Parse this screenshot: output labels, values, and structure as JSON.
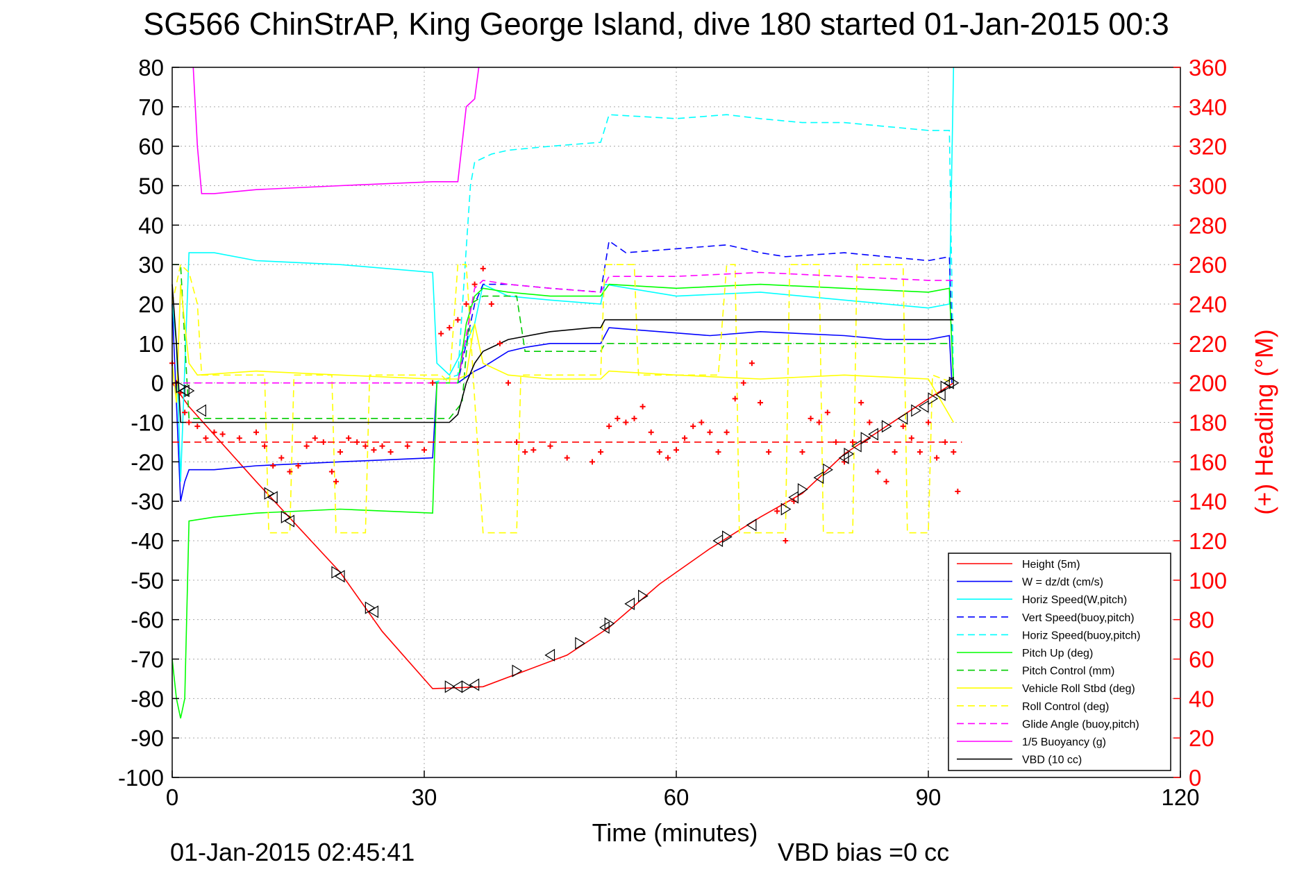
{
  "chart_data": {
    "type": "line",
    "title": "SG566 ChinStrAP, King George Island, dive 180 started 01-Jan-2015 00:3",
    "xlabel": "Time (minutes)",
    "ylabel_right": "(+) Heading (°M)",
    "xlim": [
      0,
      120
    ],
    "ylim": [
      -100,
      80
    ],
    "ylim_right": [
      0,
      360
    ],
    "xticks": [
      0,
      30,
      60,
      90,
      120
    ],
    "yticks": [
      80,
      70,
      60,
      50,
      40,
      30,
      20,
      10,
      0,
      -10,
      -20,
      -30,
      -40,
      -50,
      -60,
      -70,
      -80,
      -90,
      -100
    ],
    "yticks_right": [
      360,
      340,
      320,
      300,
      280,
      260,
      240,
      220,
      200,
      180,
      160,
      140,
      120,
      100,
      80,
      60,
      40,
      20,
      0
    ],
    "grid": true,
    "legend_position": "bottom-right",
    "footer_left": "01-Jan-2015 02:45:41",
    "footer_right": "VBD bias =0 cc",
    "colors": {
      "axis_right": "#ff0000",
      "grid": "#aaaaaa"
    },
    "series": [
      {
        "name": "Height (5m)",
        "color": "#ff0000",
        "dash": "solid",
        "x": [
          0,
          2,
          10,
          20,
          25,
          31,
          37,
          42,
          47,
          52,
          58,
          64,
          70,
          75,
          80,
          85,
          90,
          93
        ],
        "y": [
          0,
          -6,
          -25,
          -48,
          -63,
          -77.5,
          -77,
          -73,
          -69,
          -62,
          -51,
          -42,
          -34,
          -28,
          -18,
          -11,
          -4,
          0
        ]
      },
      {
        "name": "W = dz/dt (cm/s)",
        "color": "#0000ff",
        "dash": "solid",
        "x": [
          0,
          0.5,
          1,
          1.5,
          2,
          5,
          10,
          20,
          31,
          31.5,
          34,
          36,
          37,
          40,
          42,
          45,
          51,
          51.5,
          52,
          58,
          64,
          70,
          80,
          85,
          90,
          92.5,
          92.8
        ],
        "y": [
          20,
          -5,
          -30,
          -25,
          -22,
          -22,
          -21,
          -20,
          -19,
          0,
          0,
          3,
          4,
          8,
          9,
          10,
          10,
          12,
          14,
          13,
          12,
          13,
          12,
          11,
          11,
          12,
          0
        ]
      },
      {
        "name": "Horiz Speed(W,pitch)",
        "color": "#00ffff",
        "dash": "solid",
        "x": [
          0,
          0.5,
          1,
          2,
          5,
          10,
          20,
          31,
          31.5,
          33,
          35,
          36,
          37,
          40,
          45,
          51,
          51.5,
          60,
          70,
          80,
          90,
          92.5,
          93
        ],
        "y": [
          20,
          10,
          -25,
          33,
          33,
          31,
          30,
          28,
          5,
          2,
          10,
          15,
          25,
          22,
          21,
          20,
          25,
          22,
          23,
          21,
          19,
          20,
          80
        ]
      },
      {
        "name": "Vert Speed(buoy,pitch)",
        "color": "#0000ff",
        "dash": "dashed",
        "x": [
          31,
          34,
          36,
          37,
          40,
          45,
          51,
          52,
          54,
          60,
          66,
          70,
          73,
          80,
          85,
          90,
          92.5,
          93
        ],
        "y": [
          0,
          0,
          20,
          25,
          25,
          24,
          23,
          36,
          33,
          34,
          35,
          33,
          32,
          33,
          32,
          31,
          32,
          0
        ]
      },
      {
        "name": "Horiz Speed(buoy,pitch)",
        "color": "#00ffff",
        "dash": "dashed",
        "x": [
          31,
          34,
          35.5,
          36,
          38,
          40,
          45,
          51,
          52,
          60,
          66,
          70,
          75,
          80,
          85,
          90,
          92.5,
          93
        ],
        "y": [
          0,
          2,
          50,
          56,
          58,
          59,
          60,
          61,
          68,
          67,
          68,
          67,
          66,
          66,
          65,
          64,
          64,
          0
        ]
      },
      {
        "name": "Pitch Up (deg)",
        "color": "#00ff00",
        "dash": "solid",
        "x": [
          0,
          0.5,
          1,
          1.5,
          2,
          5,
          10,
          20,
          31,
          31.5,
          34,
          35,
          36,
          37,
          40,
          45,
          51,
          52,
          60,
          70,
          80,
          90,
          92.5,
          93
        ],
        "y": [
          -70,
          -80,
          -85,
          -80,
          -35,
          -34,
          -33,
          -32,
          -33,
          0,
          0,
          15,
          22,
          24,
          23,
          22,
          22,
          25,
          24,
          25,
          24,
          23,
          24,
          0
        ]
      },
      {
        "name": "Pitch Control (mm)",
        "color": "#00cc00",
        "dash": "dashed",
        "x": [
          0,
          1,
          2,
          31,
          33,
          34.5,
          35.5,
          37,
          41,
          42,
          51,
          51.5,
          93
        ],
        "y": [
          30,
          30,
          -9,
          -9,
          -9,
          -5,
          20,
          22,
          22,
          8,
          8,
          10,
          10
        ]
      },
      {
        "name": "Vehicle Roll Stbd (deg)",
        "color": "#ffff00",
        "dash": "solid",
        "x": [
          0,
          0.5,
          1,
          1.5,
          2,
          3,
          10,
          20,
          31,
          32,
          34,
          35,
          36,
          37,
          40,
          45,
          51,
          52,
          60,
          70,
          80,
          90,
          93
        ],
        "y": [
          5,
          -5,
          25,
          15,
          5,
          2,
          3,
          2,
          1,
          1,
          1,
          2,
          15,
          5,
          2,
          1,
          1,
          3,
          2,
          1,
          2,
          1,
          -10
        ]
      },
      {
        "name": "Roll Control (deg)",
        "color": "#ffff00",
        "dash": "dashed",
        "x": [
          0,
          1,
          2,
          3,
          3.5,
          11,
          11.5,
          14,
          14.5,
          19,
          19.5,
          23,
          23.5,
          32,
          33,
          34,
          35,
          37,
          37.5,
          41,
          41.5,
          51,
          51.5,
          55,
          55.5,
          65,
          66,
          67,
          67.5,
          73,
          73.5,
          77,
          77.5,
          81,
          81.5,
          87,
          87.5,
          90,
          90.5,
          93
        ],
        "y": [
          20,
          30,
          28,
          20,
          2,
          2,
          -38,
          -38,
          2,
          2,
          -38,
          -38,
          2,
          2,
          0,
          30,
          30,
          -38,
          -38,
          -38,
          2,
          2,
          30,
          30,
          2,
          2,
          30,
          30,
          -38,
          -38,
          30,
          30,
          -38,
          -38,
          30,
          30,
          -38,
          -38,
          2,
          0
        ]
      },
      {
        "name": "Glide Angle (buoy,pitch)",
        "color": "#ff00ff",
        "dash": "dashed",
        "x": [
          0,
          31,
          34,
          36,
          37,
          40,
          45,
          51,
          52,
          60,
          70,
          80,
          90,
          93
        ],
        "y": [
          0,
          0,
          0,
          24,
          26,
          25,
          24,
          23,
          27,
          27,
          28,
          27,
          26,
          26
        ]
      },
      {
        "name": "1/5 Buoyancy (g)",
        "color": "#ff00ff",
        "dash": "solid",
        "x": [
          2.5,
          3,
          3.5,
          5,
          10,
          20,
          31,
          34,
          35,
          36,
          36.5
        ],
        "y": [
          80,
          60,
          48,
          48,
          49,
          50,
          51,
          51,
          70,
          72,
          80
        ]
      },
      {
        "name": "VBD (10 cc)",
        "color": "#000000",
        "dash": "solid",
        "x": [
          0,
          0.5,
          1,
          3,
          10,
          20,
          31,
          33,
          34,
          35,
          36,
          37,
          38,
          40,
          45,
          50,
          51,
          51.5,
          60,
          70,
          80,
          90,
          93
        ],
        "y": [
          25,
          10,
          -10,
          -10,
          -10,
          -10,
          -10,
          -10,
          -8,
          0,
          5,
          8,
          9,
          11,
          13,
          14,
          14,
          16,
          16,
          16,
          16,
          16,
          16
        ]
      },
      {
        "name": "",
        "color": "#ff0000",
        "dash": "dashed",
        "axis": "right",
        "x": [
          0,
          94
        ],
        "y": [
          170,
          170
        ]
      }
    ],
    "heading_points": {
      "color": "#ff0000",
      "marker": "+",
      "axis": "right",
      "x": [
        0,
        0.5,
        1,
        1.5,
        2,
        3,
        4,
        5,
        6,
        8,
        10,
        11,
        12,
        13,
        14,
        15,
        16,
        17,
        18,
        19,
        19.5,
        20,
        21,
        22,
        23,
        24,
        25,
        26,
        28,
        30,
        31,
        32,
        33,
        34,
        35,
        36,
        37,
        38,
        39,
        40,
        41,
        42,
        43,
        45,
        47,
        50,
        51,
        52,
        53,
        54,
        55,
        56,
        57,
        58,
        59,
        60,
        61,
        62,
        63,
        64,
        65,
        66,
        67,
        68,
        69,
        70,
        71,
        72,
        73,
        74,
        75,
        76,
        77,
        78,
        79,
        80,
        81,
        82,
        83,
        84,
        85,
        86,
        87,
        88,
        89,
        90,
        91,
        92,
        93,
        93.5
      ],
      "y": [
        210,
        200,
        195,
        185,
        180,
        178,
        172,
        175,
        174,
        172,
        175,
        168,
        158,
        162,
        155,
        158,
        168,
        172,
        170,
        155,
        150,
        165,
        172,
        170,
        168,
        166,
        168,
        165,
        168,
        166,
        200,
        225,
        228,
        232,
        240,
        250,
        258,
        240,
        220,
        200,
        170,
        165,
        166,
        168,
        162,
        160,
        165,
        178,
        182,
        180,
        182,
        188,
        175,
        165,
        162,
        166,
        172,
        178,
        180,
        175,
        165,
        175,
        192,
        200,
        210,
        190,
        165,
        135,
        120,
        140,
        165,
        182,
        180,
        185,
        170,
        160,
        170,
        190,
        180,
        155,
        150,
        165,
        178,
        172,
        165,
        180,
        162,
        170,
        165,
        145
      ]
    },
    "height_markers": {
      "color": "#000000",
      "x": [
        1,
        1.5,
        2,
        3.5,
        11.5,
        12,
        13.5,
        14,
        19.5,
        20,
        23.5,
        24,
        33,
        34,
        35,
        36,
        41,
        45,
        48.5,
        51.5,
        52,
        54.5,
        56,
        65,
        66,
        69,
        73,
        74,
        75,
        77,
        78,
        80,
        80.5,
        81.5,
        82.5,
        83.5,
        85,
        87,
        88.5,
        89.5,
        90.5,
        91.5,
        92,
        92.5,
        93
      ],
      "y": [
        -1,
        -2,
        -2,
        -7,
        -28,
        -29,
        -34,
        -35,
        -48,
        -49,
        -57,
        -58,
        -77,
        -77,
        -77,
        -76.5,
        -73,
        -69,
        -66,
        -62,
        -61,
        -56,
        -54,
        -40,
        -39,
        -36,
        -32,
        -29,
        -27,
        -24,
        -22,
        -19,
        -18,
        -16,
        -14,
        -13,
        -11,
        -9,
        -7,
        -6,
        -4,
        -3,
        -1,
        0,
        0
      ]
    }
  }
}
